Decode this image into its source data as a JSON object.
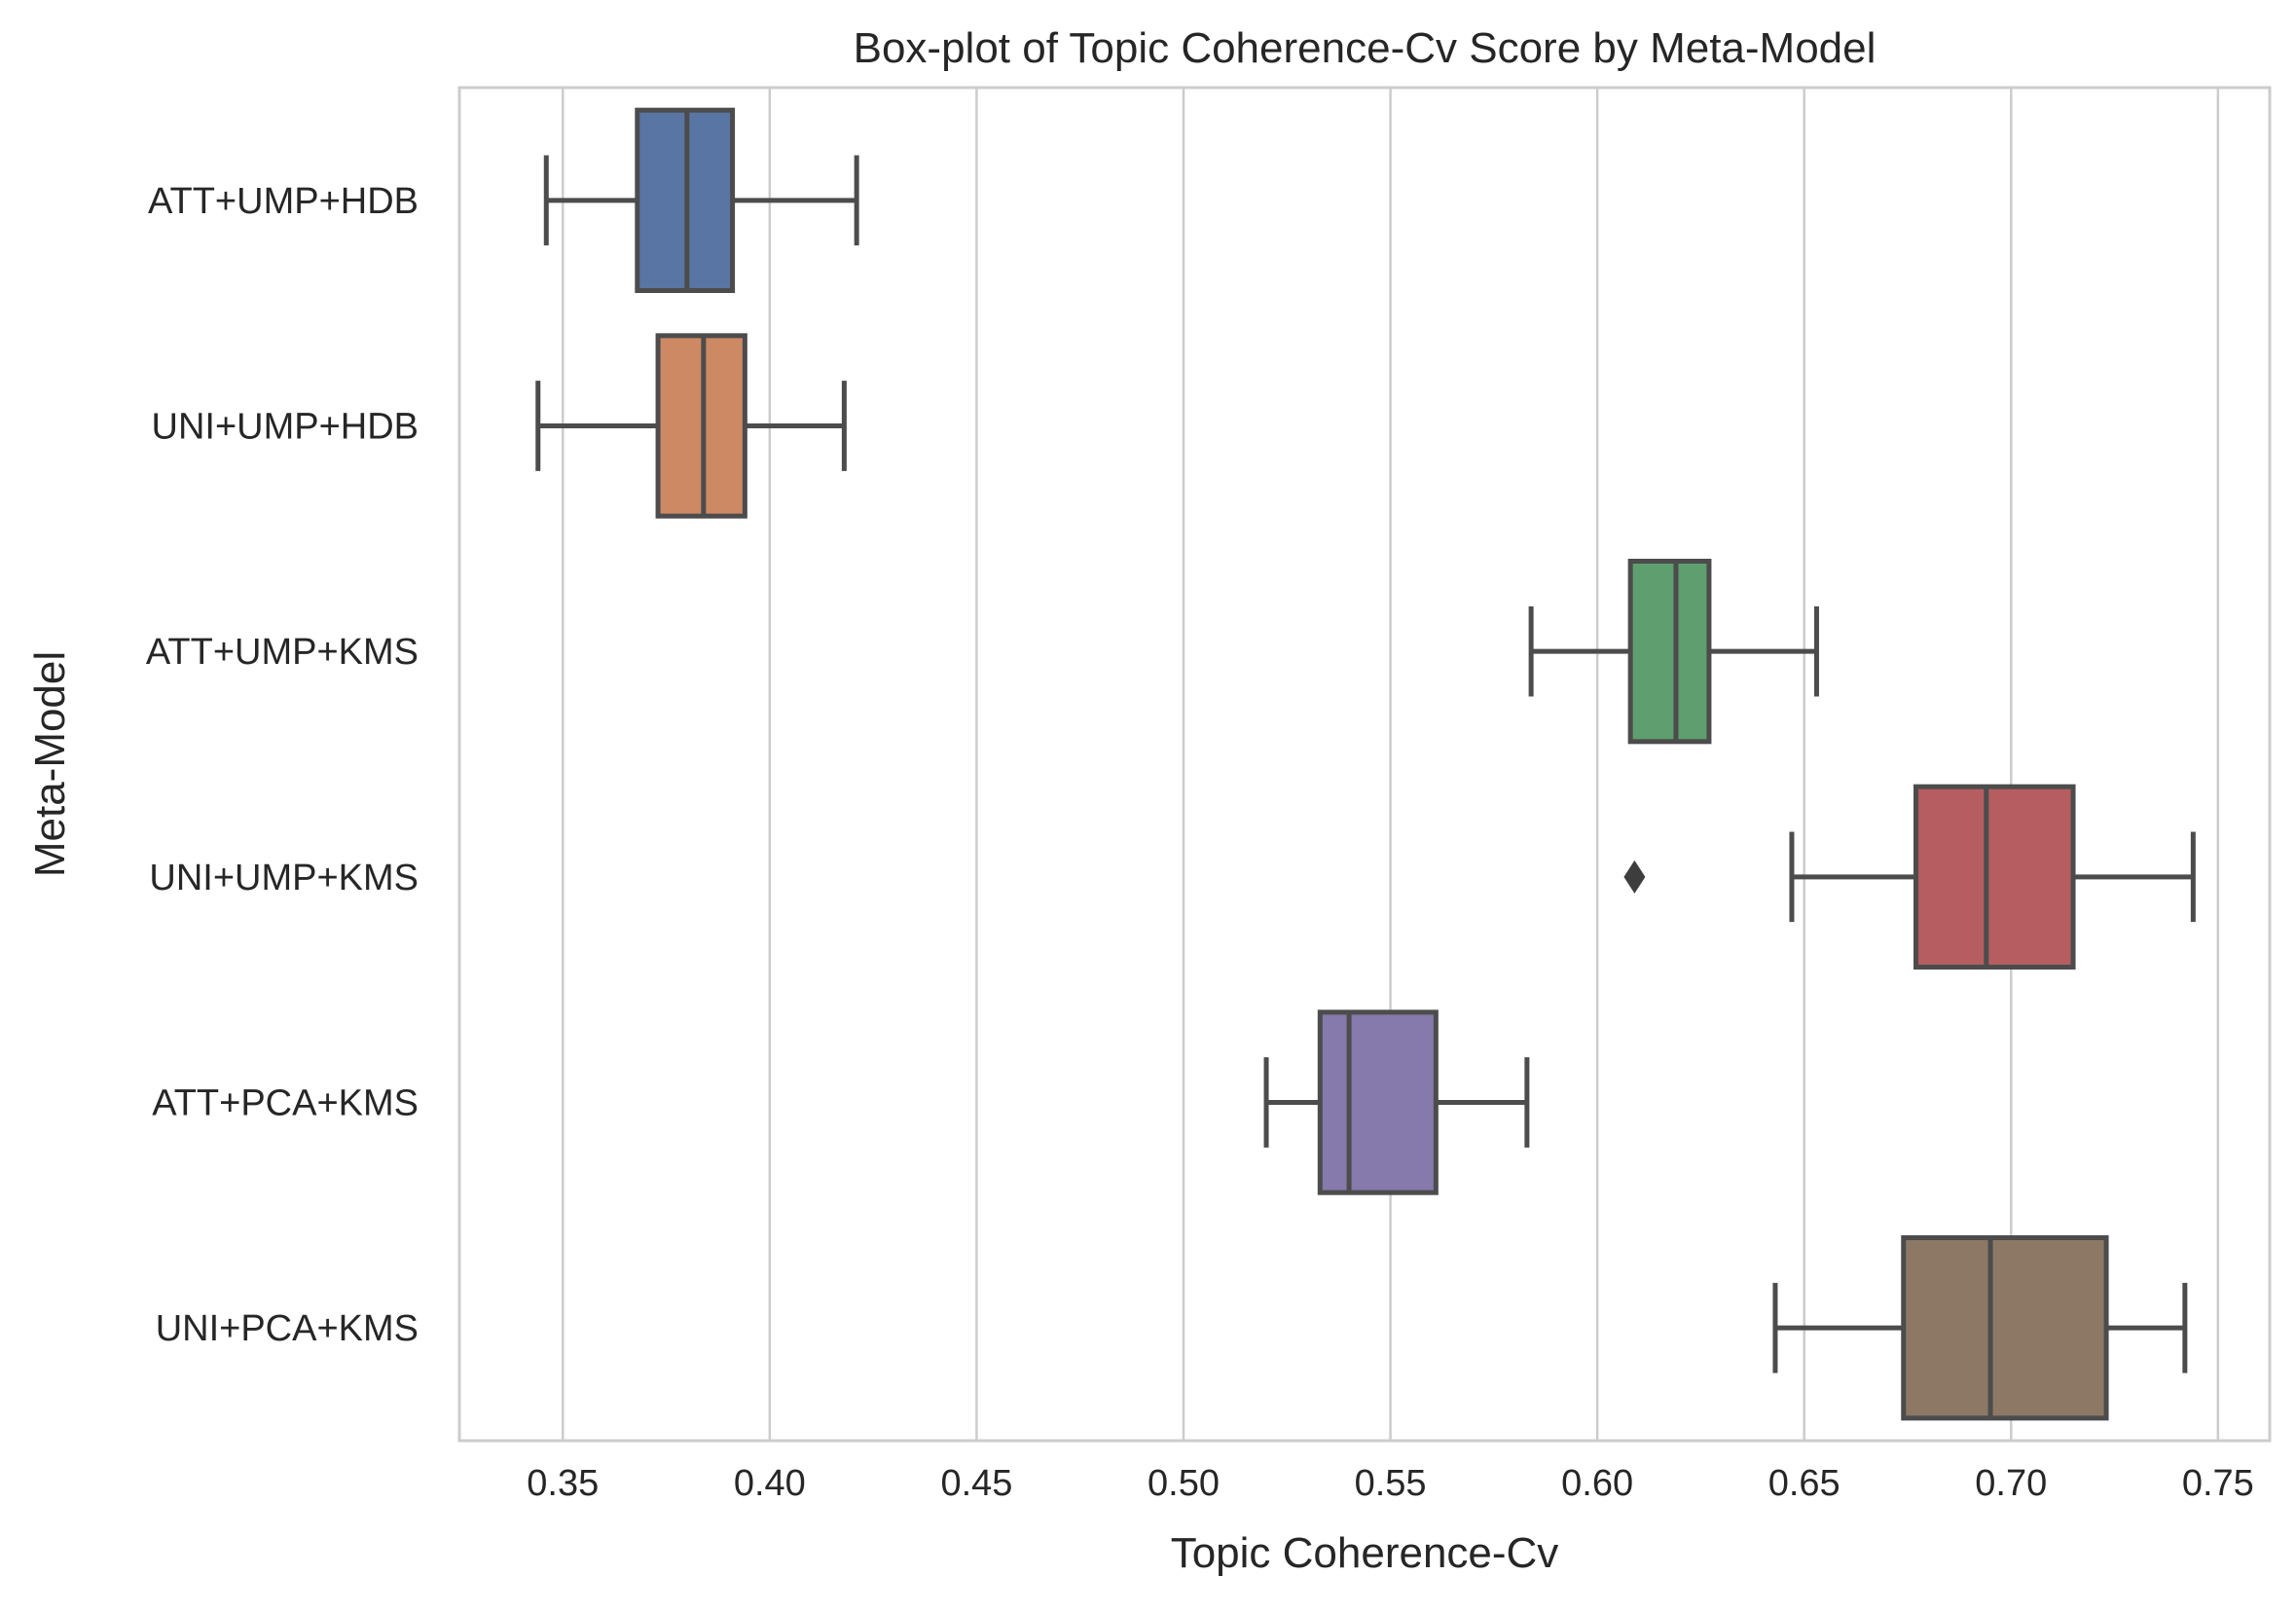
{
  "chart_data": {
    "type": "boxplot",
    "orientation": "horizontal",
    "title": "Box-plot of Topic Coherence-Cv Score by Meta-Model",
    "xlabel": "Topic Coherence-Cv",
    "ylabel": "Meta-Model",
    "xlim": [
      0.325,
      0.7625
    ],
    "xticks": [
      0.35,
      0.4,
      0.45,
      0.5,
      0.55,
      0.6,
      0.65,
      0.7,
      0.75
    ],
    "xtick_labels": [
      "0.35",
      "0.40",
      "0.45",
      "0.50",
      "0.55",
      "0.60",
      "0.65",
      "0.70",
      "0.75"
    ],
    "grid": "vertical",
    "categories": [
      "ATT+UMP+HDB",
      "UNI+UMP+HDB",
      "ATT+UMP+KMS",
      "UNI+UMP+KMS",
      "ATT+PCA+KMS",
      "UNI+PCA+KMS"
    ],
    "boxes": [
      {
        "category": "ATT+UMP+HDB",
        "whisker_low": 0.346,
        "q1": 0.368,
        "median": 0.38,
        "q3": 0.391,
        "whisker_high": 0.421,
        "outliers": [],
        "color": "#5875a4"
      },
      {
        "category": "UNI+UMP+HDB",
        "whisker_low": 0.344,
        "q1": 0.373,
        "median": 0.384,
        "q3": 0.394,
        "whisker_high": 0.418,
        "outliers": [],
        "color": "#cc8963"
      },
      {
        "category": "ATT+UMP+KMS",
        "whisker_low": 0.584,
        "q1": 0.608,
        "median": 0.619,
        "q3": 0.627,
        "whisker_high": 0.653,
        "outliers": [],
        "color": "#5f9e6e"
      },
      {
        "category": "UNI+UMP+KMS",
        "whisker_low": 0.647,
        "q1": 0.677,
        "median": 0.694,
        "q3": 0.715,
        "whisker_high": 0.744,
        "outliers": [
          0.609
        ],
        "color": "#b55d60"
      },
      {
        "category": "ATT+PCA+KMS",
        "whisker_low": 0.52,
        "q1": 0.533,
        "median": 0.54,
        "q3": 0.561,
        "whisker_high": 0.583,
        "outliers": [],
        "color": "#857aab"
      },
      {
        "category": "UNI+PCA+KMS",
        "whisker_low": 0.643,
        "q1": 0.674,
        "median": 0.695,
        "q3": 0.723,
        "whisker_high": 0.742,
        "outliers": [],
        "color": "#8d7866"
      }
    ]
  }
}
